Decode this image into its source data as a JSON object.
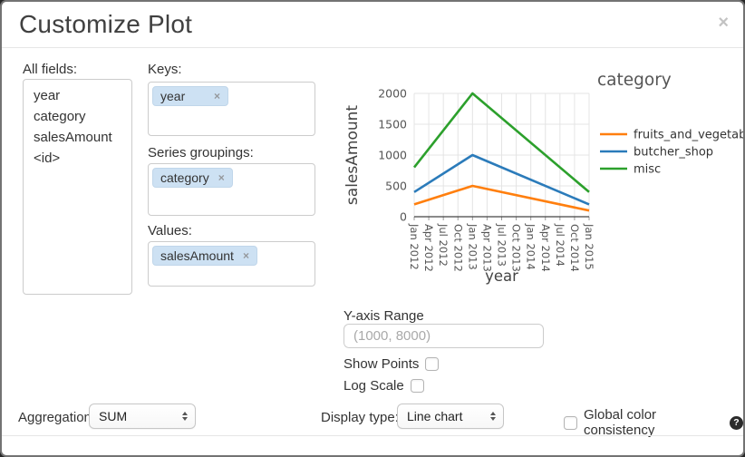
{
  "dialog": {
    "title": "Customize Plot"
  },
  "ui": {
    "close_glyph": "×",
    "tag_remove_glyph": "×",
    "help_glyph": "?"
  },
  "fields_panel": {
    "label": "All fields:",
    "items": [
      "year",
      "category",
      "salesAmount",
      "<id>"
    ]
  },
  "keys_panel": {
    "label": "Keys:",
    "tags": [
      {
        "text": "year"
      }
    ]
  },
  "series_panel": {
    "label": "Series groupings:",
    "tags": [
      {
        "text": "category"
      }
    ]
  },
  "values_panel": {
    "label": "Values:",
    "tags": [
      {
        "text": "salesAmount"
      }
    ]
  },
  "y_axis_range": {
    "label": "Y-axis Range",
    "placeholder": "(1000, 8000)",
    "value": ""
  },
  "show_points": {
    "label": "Show Points",
    "checked": false
  },
  "log_scale": {
    "label": "Log Scale",
    "checked": false
  },
  "aggregation": {
    "label": "Aggregation:",
    "value": "SUM"
  },
  "display_type": {
    "label": "Display type:",
    "value": "Line chart"
  },
  "global_color": {
    "label": "Global color consistency",
    "checked": false
  },
  "chart_data": {
    "type": "line",
    "title": "",
    "xlabel": "year",
    "ylabel": "salesAmount",
    "legend_title": "category",
    "legend_position": "right",
    "grid": true,
    "x_ticks": [
      "Jan 2012",
      "Apr 2012",
      "Jul 2012",
      "Oct 2012",
      "Jan 2013",
      "Apr 2013",
      "Jul 2013",
      "Oct 2013",
      "Jan 2014",
      "Apr 2014",
      "Jul 2014",
      "Oct 2014",
      "Jan 2015"
    ],
    "y_ticks": [
      0,
      500,
      1000,
      1500,
      2000
    ],
    "ylim": [
      0,
      2000
    ],
    "series": [
      {
        "name": "fruits_and_vegetables",
        "color": "#ff7f0e",
        "x": [
          "Jan 2012",
          "Jan 2013",
          "Jan 2015"
        ],
        "values": [
          200,
          500,
          100
        ]
      },
      {
        "name": "butcher_shop",
        "color": "#2b7bba",
        "x": [
          "Jan 2012",
          "Jan 2013",
          "Jan 2015"
        ],
        "values": [
          400,
          1000,
          200
        ]
      },
      {
        "name": "misc",
        "color": "#2ca02c",
        "x": [
          "Jan 2012",
          "Jan 2013",
          "Jan 2015"
        ],
        "values": [
          800,
          2000,
          400
        ]
      }
    ]
  }
}
